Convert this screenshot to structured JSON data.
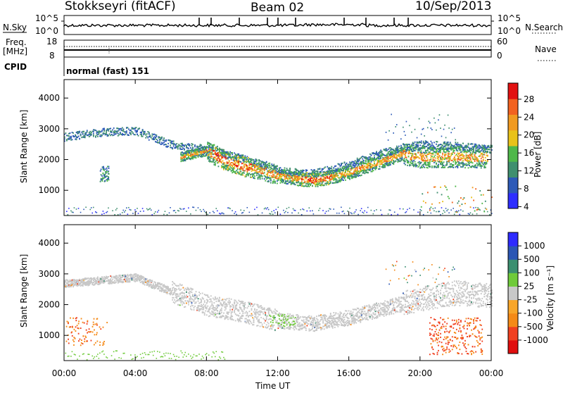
{
  "header": {
    "station": "Stokkseyri (fitACF)",
    "beam": "Beam 02",
    "date": "10/Sep/2013"
  },
  "nsky_panel": {
    "left_label": "N.Sky",
    "right_label": "N.Search",
    "left_ticks": [
      "10^5",
      "10^0"
    ],
    "right_ticks": [
      "10^5",
      "10^0"
    ]
  },
  "freq_panel": {
    "left_label_line1": "Freq.",
    "left_label_line2": "[MHz]",
    "left_ticks": [
      "18",
      "8"
    ],
    "right_label": "Nave",
    "right_ticks": [
      "60",
      "0"
    ],
    "cpid_label": "CPID"
  },
  "cpid_panel": {
    "text": "normal (fast) 151"
  },
  "axes": {
    "ylabel": "Slant Range [km]",
    "xlabel": "Time UT",
    "yticks": [
      "4000",
      "3000",
      "2000",
      "1000"
    ],
    "xticks": [
      "00:00",
      "04:00",
      "08:00",
      "12:00",
      "16:00",
      "20:00",
      "00:00"
    ]
  },
  "colors": {
    "power": [
      "#2e2eff",
      "#2d5ab8",
      "#3f8f6f",
      "#4fb84a",
      "#e8c21a",
      "#f19a20",
      "#f2621f",
      "#e21111"
    ],
    "velocity": [
      "#e00e0e",
      "#f04020",
      "#f58a17",
      "#f8a62a",
      "#c8c8c8",
      "#6fca3a",
      "#3b8f70",
      "#2b56b4",
      "#2d2aff"
    ]
  },
  "chart_data": [
    {
      "type": "heatmap",
      "title": "",
      "xlabel": "",
      "ylabel": "Slant Range [km]",
      "colorbar_label": "Power [dB]",
      "colorbar_ticks": [
        "28",
        "24",
        "20",
        "16",
        "12",
        "8",
        "4"
      ],
      "x_range_hours": [
        0,
        24
      ],
      "y_range_km": [
        180,
        4600
      ],
      "structures": [
        {
          "feature": "upper band",
          "t": [
            0,
            2,
            4,
            6,
            8,
            10,
            12,
            14,
            16,
            18,
            20,
            22,
            24
          ],
          "range_km": [
            2700,
            2850,
            2900,
            2450,
            2300,
            2000,
            1600,
            1500,
            1800,
            2200,
            2450,
            2400,
            2300
          ],
          "level_db": 8
        },
        {
          "feature": "main echo band",
          "t": [
            6.5,
            8,
            9,
            10,
            11,
            12,
            13,
            14,
            15,
            16,
            17,
            18,
            19,
            20
          ],
          "range_km": [
            2100,
            2300,
            2000,
            1800,
            1700,
            1500,
            1400,
            1350,
            1450,
            1600,
            1800,
            2000,
            2200,
            2100
          ],
          "level_db": 20
        },
        {
          "feature": "strong core",
          "t": [
            8.3,
            9,
            10,
            13.5,
            14.5,
            16.5,
            17.5
          ],
          "range_km": [
            2100,
            1900,
            1700,
            1250,
            1250,
            1700,
            1800
          ],
          "level_db": 27
        }
      ]
    },
    {
      "type": "heatmap",
      "title": "",
      "xlabel": "Time UT",
      "ylabel": "Slant Range [km]",
      "colorbar_label": "Velocity [m s^-1]",
      "colorbar_ticks": [
        "1000",
        "500",
        "100",
        "25",
        "-25",
        "-100",
        "-500",
        "-1000"
      ],
      "x_range_hours": [
        0,
        24
      ],
      "y_range_km": [
        180,
        4600
      ],
      "structures": [
        {
          "feature": "ground scatter band",
          "t": [
            0,
            4,
            6,
            8,
            10,
            12,
            14,
            16,
            18,
            20,
            22,
            24
          ],
          "range_km": [
            2700,
            2900,
            2450,
            2000,
            1800,
            1500,
            1400,
            1600,
            1900,
            2200,
            2400,
            2300
          ],
          "velocity": 0
        },
        {
          "feature": "receding flow",
          "t": [
            21,
            22,
            23,
            23.5
          ],
          "range_km": [
            700,
            900,
            1300,
            1000
          ],
          "velocity": -250
        },
        {
          "feature": "near-range slow flow",
          "t": [
            0,
            4,
            8
          ],
          "range_km": [
            400,
            300,
            300
          ],
          "velocity": 80
        }
      ]
    }
  ]
}
